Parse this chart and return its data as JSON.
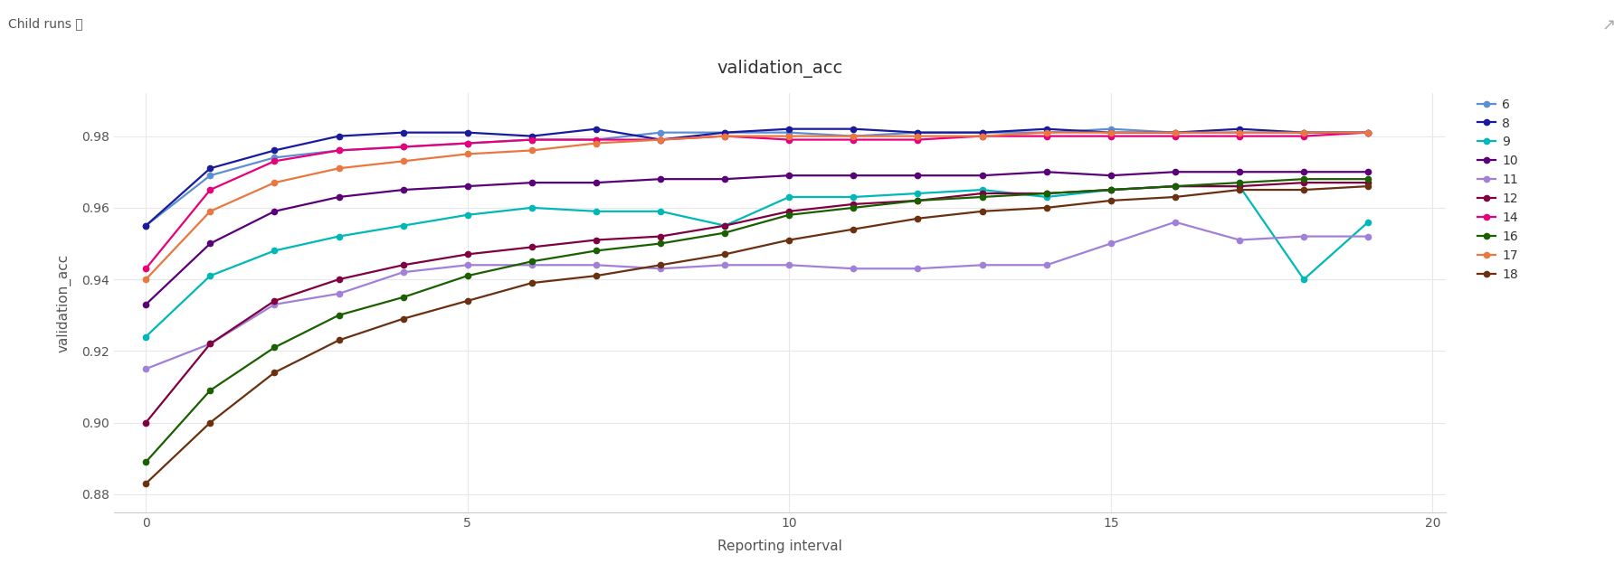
{
  "title": "validation_acc",
  "xlabel": "Reporting interval",
  "ylabel": "validation_acc",
  "xlim": [
    -0.5,
    20.2
  ],
  "ylim": [
    0.875,
    0.992
  ],
  "yticks": [
    0.88,
    0.9,
    0.92,
    0.94,
    0.96,
    0.98
  ],
  "xticks": [
    0,
    5,
    10,
    15,
    20
  ],
  "background_color": "#ffffff",
  "series": [
    {
      "label": "6",
      "color": "#5b8fd4",
      "x": [
        0,
        1,
        2,
        3,
        4,
        5,
        6,
        7,
        8,
        9,
        10,
        11,
        12,
        13,
        14,
        15,
        16,
        17,
        18,
        19
      ],
      "y": [
        0.955,
        0.969,
        0.974,
        0.976,
        0.977,
        0.978,
        0.979,
        0.979,
        0.981,
        0.981,
        0.981,
        0.98,
        0.981,
        0.981,
        0.981,
        0.982,
        0.981,
        0.981,
        0.981,
        0.981
      ]
    },
    {
      "label": "8",
      "color": "#1a1a9c",
      "x": [
        0,
        1,
        2,
        3,
        4,
        5,
        6,
        7,
        8,
        9,
        10,
        11,
        12,
        13,
        14,
        15,
        16,
        17,
        18,
        19
      ],
      "y": [
        0.955,
        0.971,
        0.976,
        0.98,
        0.981,
        0.981,
        0.98,
        0.982,
        0.979,
        0.981,
        0.982,
        0.982,
        0.981,
        0.981,
        0.982,
        0.981,
        0.981,
        0.982,
        0.981,
        0.981
      ]
    },
    {
      "label": "9",
      "color": "#00b8b8",
      "x": [
        0,
        1,
        2,
        3,
        4,
        5,
        6,
        7,
        8,
        9,
        10,
        11,
        12,
        13,
        14,
        15,
        16,
        17,
        18,
        19
      ],
      "y": [
        0.924,
        0.941,
        0.948,
        0.952,
        0.955,
        0.958,
        0.96,
        0.959,
        0.959,
        0.955,
        0.963,
        0.963,
        0.964,
        0.965,
        0.963,
        0.965,
        0.966,
        0.966,
        0.94,
        0.956
      ]
    },
    {
      "label": "10",
      "color": "#5a0078",
      "x": [
        0,
        1,
        2,
        3,
        4,
        5,
        6,
        7,
        8,
        9,
        10,
        11,
        12,
        13,
        14,
        15,
        16,
        17,
        18,
        19
      ],
      "y": [
        0.933,
        0.95,
        0.959,
        0.963,
        0.965,
        0.966,
        0.967,
        0.967,
        0.968,
        0.968,
        0.969,
        0.969,
        0.969,
        0.969,
        0.97,
        0.969,
        0.97,
        0.97,
        0.97,
        0.97
      ]
    },
    {
      "label": "11",
      "color": "#a080d8",
      "x": [
        0,
        1,
        2,
        3,
        4,
        5,
        6,
        7,
        8,
        9,
        10,
        11,
        12,
        13,
        14,
        15,
        16,
        17,
        18,
        19
      ],
      "y": [
        0.915,
        0.922,
        0.933,
        0.936,
        0.942,
        0.944,
        0.944,
        0.944,
        0.943,
        0.944,
        0.944,
        0.943,
        0.943,
        0.944,
        0.944,
        0.95,
        0.956,
        0.951,
        0.952,
        0.952
      ]
    },
    {
      "label": "12",
      "color": "#800040",
      "x": [
        0,
        1,
        2,
        3,
        4,
        5,
        6,
        7,
        8,
        9,
        10,
        11,
        12,
        13,
        14,
        15,
        16,
        17,
        18,
        19
      ],
      "y": [
        0.9,
        0.922,
        0.934,
        0.94,
        0.944,
        0.947,
        0.949,
        0.951,
        0.952,
        0.955,
        0.959,
        0.961,
        0.962,
        0.964,
        0.964,
        0.965,
        0.966,
        0.966,
        0.967,
        0.967
      ]
    },
    {
      "label": "14",
      "color": "#e8007a",
      "x": [
        0,
        1,
        2,
        3,
        4,
        5,
        6,
        7,
        8,
        9,
        10,
        11,
        12,
        13,
        14,
        15,
        16,
        17,
        18,
        19
      ],
      "y": [
        0.943,
        0.965,
        0.973,
        0.976,
        0.977,
        0.978,
        0.979,
        0.979,
        0.979,
        0.98,
        0.979,
        0.979,
        0.979,
        0.98,
        0.98,
        0.98,
        0.98,
        0.98,
        0.98,
        0.981
      ]
    },
    {
      "label": "16",
      "color": "#1a6000",
      "x": [
        0,
        1,
        2,
        3,
        4,
        5,
        6,
        7,
        8,
        9,
        10,
        11,
        12,
        13,
        14,
        15,
        16,
        17,
        18,
        19
      ],
      "y": [
        0.889,
        0.909,
        0.921,
        0.93,
        0.935,
        0.941,
        0.945,
        0.948,
        0.95,
        0.953,
        0.958,
        0.96,
        0.962,
        0.963,
        0.964,
        0.965,
        0.966,
        0.967,
        0.968,
        0.968
      ]
    },
    {
      "label": "17",
      "color": "#e87840",
      "x": [
        0,
        1,
        2,
        3,
        4,
        5,
        6,
        7,
        8,
        9,
        10,
        11,
        12,
        13,
        14,
        15,
        16,
        17,
        18,
        19
      ],
      "y": [
        0.94,
        0.959,
        0.967,
        0.971,
        0.973,
        0.975,
        0.976,
        0.978,
        0.979,
        0.98,
        0.98,
        0.98,
        0.98,
        0.98,
        0.981,
        0.981,
        0.981,
        0.981,
        0.981,
        0.981
      ]
    },
    {
      "label": "18",
      "color": "#6b3010",
      "x": [
        0,
        1,
        2,
        3,
        4,
        5,
        6,
        7,
        8,
        9,
        10,
        11,
        12,
        13,
        14,
        15,
        16,
        17,
        18,
        19
      ],
      "y": [
        0.883,
        0.9,
        0.914,
        0.923,
        0.929,
        0.934,
        0.939,
        0.941,
        0.944,
        0.947,
        0.951,
        0.954,
        0.957,
        0.959,
        0.96,
        0.962,
        0.963,
        0.965,
        0.965,
        0.966
      ]
    }
  ],
  "grid_color": "#e8e8e8",
  "title_fontsize": 14,
  "axis_label_fontsize": 11,
  "tick_fontsize": 10,
  "legend_fontsize": 10,
  "header_text": "Child runs ⓘ",
  "header_fontsize": 10,
  "expand_icon": "↗"
}
